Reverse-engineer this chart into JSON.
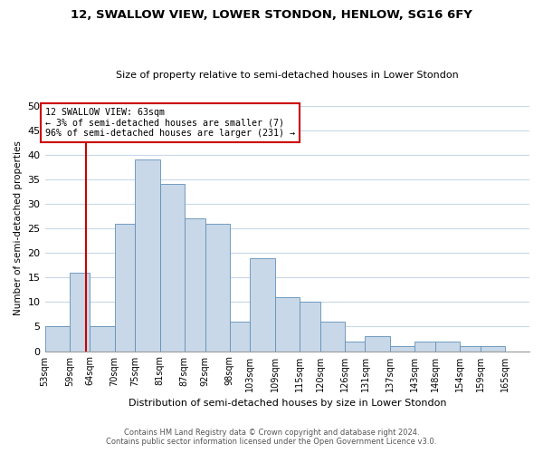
{
  "title": "12, SWALLOW VIEW, LOWER STONDON, HENLOW, SG16 6FY",
  "subtitle": "Size of property relative to semi-detached houses in Lower Stondon",
  "xlabel": "Distribution of semi-detached houses by size in Lower Stondon",
  "ylabel": "Number of semi-detached properties",
  "bin_labels": [
    "53sqm",
    "59sqm",
    "64sqm",
    "70sqm",
    "75sqm",
    "81sqm",
    "87sqm",
    "92sqm",
    "98sqm",
    "103sqm",
    "109sqm",
    "115sqm",
    "120sqm",
    "126sqm",
    "131sqm",
    "137sqm",
    "143sqm",
    "148sqm",
    "154sqm",
    "159sqm",
    "165sqm"
  ],
  "bin_edges": [
    53,
    59,
    64,
    70,
    75,
    81,
    87,
    92,
    98,
    103,
    109,
    115,
    120,
    126,
    131,
    137,
    143,
    148,
    154,
    159,
    165,
    171
  ],
  "bar_heights": [
    5,
    16,
    5,
    26,
    39,
    34,
    27,
    26,
    6,
    19,
    11,
    10,
    6,
    2,
    3,
    1,
    2,
    2,
    1,
    1,
    0
  ],
  "bar_color": "#c8d8e8",
  "bar_edgecolor": "#6090b8",
  "property_value": 63,
  "vline_color": "#cc0000",
  "annotation_text": "12 SWALLOW VIEW: 63sqm\n← 3% of semi-detached houses are smaller (7)\n96% of semi-detached houses are larger (231) →",
  "annotation_box_edgecolor": "#cc0000",
  "ylim": [
    0,
    50
  ],
  "yticks": [
    0,
    5,
    10,
    15,
    20,
    25,
    30,
    35,
    40,
    45,
    50
  ],
  "footer_line1": "Contains HM Land Registry data © Crown copyright and database right 2024.",
  "footer_line2": "Contains public sector information licensed under the Open Government Licence v3.0.",
  "background_color": "#ffffff",
  "grid_color": "#c8d8e8"
}
